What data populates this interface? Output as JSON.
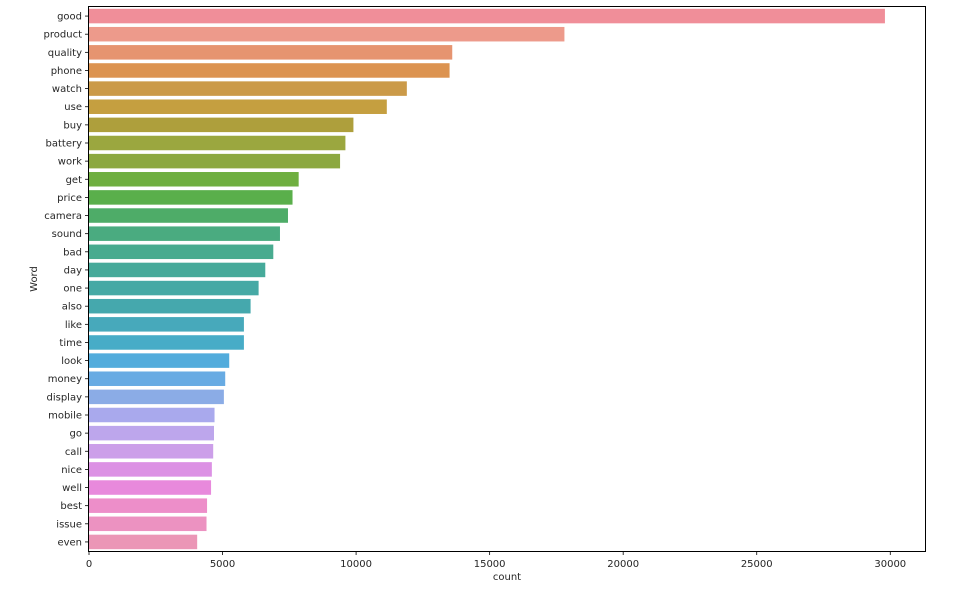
{
  "chart_data": {
    "type": "bar",
    "orientation": "horizontal",
    "title": "",
    "xlabel": "count",
    "ylabel": "Word",
    "xlim": [
      0,
      31300
    ],
    "xticks": [
      0,
      5000,
      10000,
      15000,
      20000,
      25000,
      30000
    ],
    "grid": false,
    "categories": [
      "good",
      "product",
      "quality",
      "phone",
      "watch",
      "use",
      "buy",
      "battery",
      "work",
      "get",
      "price",
      "camera",
      "sound",
      "bad",
      "day",
      "one",
      "also",
      "like",
      "time",
      "look",
      "money",
      "display",
      "mobile",
      "go",
      "call",
      "nice",
      "well",
      "best",
      "issue",
      "even"
    ],
    "values": [
      29800,
      17800,
      13600,
      13500,
      11900,
      11150,
      9900,
      9600,
      9400,
      7850,
      7620,
      7450,
      7150,
      6900,
      6600,
      6350,
      6050,
      5800,
      5800,
      5250,
      5100,
      5050,
      4700,
      4680,
      4650,
      4600,
      4570,
      4420,
      4400,
      4050
    ],
    "colors": [
      "#f08e99",
      "#ed9a8b",
      "#e69470",
      "#dc9350",
      "#cb9a48",
      "#c59f40",
      "#ae9f3c",
      "#9ba73f",
      "#8ca840",
      "#6faf40",
      "#5aaf4b",
      "#4eac68",
      "#4aab80",
      "#48ab8f",
      "#46aa9a",
      "#46a9a5",
      "#45a8ad",
      "#47a9bb",
      "#47acc7",
      "#52acdc",
      "#68abe3",
      "#8bace6",
      "#a9a9ed",
      "#bda6ec",
      "#cc9fe9",
      "#dc91e4",
      "#e889dc",
      "#ed8ec9",
      "#ec92c1",
      "#eb96b6"
    ]
  }
}
